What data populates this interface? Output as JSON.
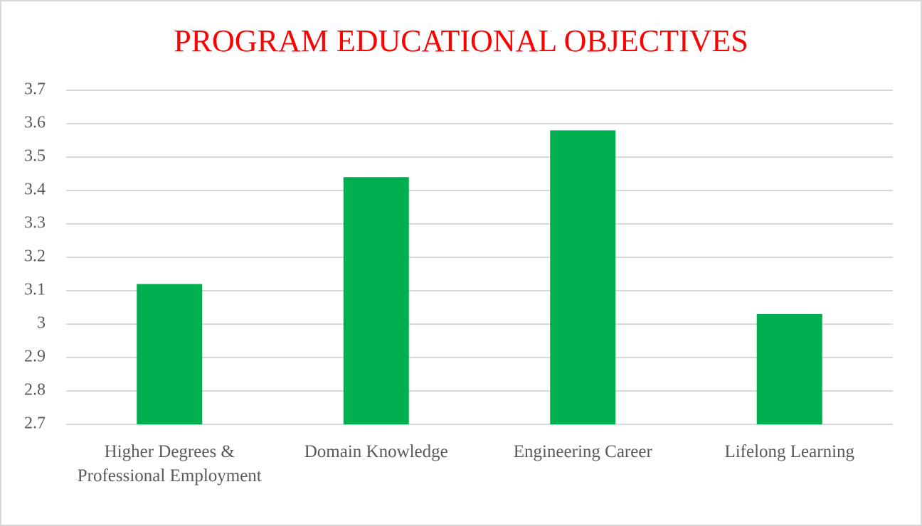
{
  "chart_data": {
    "type": "bar",
    "title": "PROGRAM EDUCATIONAL OBJECTIVES",
    "categories": [
      "Higher Degrees & Professional Employment",
      "Domain Knowledge",
      "Engineering Career",
      "Lifelong Learning"
    ],
    "values": [
      3.12,
      3.44,
      3.58,
      3.03
    ],
    "color": "#00b050",
    "ylim": [
      2.7,
      3.7
    ],
    "yticks": [
      2.7,
      2.8,
      2.9,
      3,
      3.1,
      3.2,
      3.3,
      3.4,
      3.5,
      3.6,
      3.7
    ],
    "grid": true
  }
}
